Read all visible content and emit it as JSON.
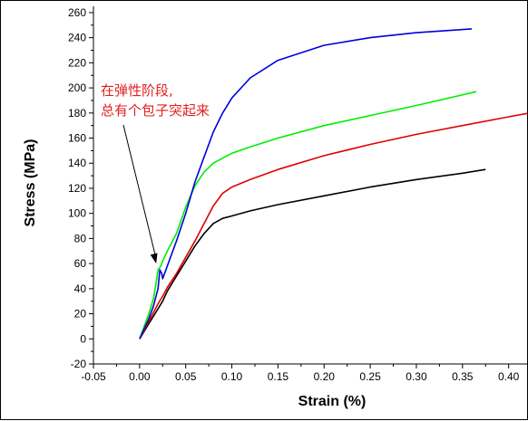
{
  "chart_data": {
    "type": "line",
    "xlabel": "Strain (%)",
    "ylabel": "Stress (MPa)",
    "xlim": [
      -0.05,
      0.42
    ],
    "ylim": [
      -20,
      265
    ],
    "x_ticks": [
      -0.05,
      0.0,
      0.05,
      0.1,
      0.15,
      0.2,
      0.25,
      0.3,
      0.35,
      0.4
    ],
    "x_tick_labels": [
      "-0.05",
      "0.00",
      "0.05",
      "0.10",
      "0.15",
      "0.20",
      "0.25",
      "0.30",
      "0.35",
      "0.40"
    ],
    "y_ticks": [
      -20,
      0,
      20,
      40,
      60,
      80,
      100,
      120,
      140,
      160,
      180,
      200,
      220,
      240,
      260
    ],
    "y_tick_labels": [
      "-20",
      "0",
      "20",
      "40",
      "60",
      "80",
      "100",
      "120",
      "140",
      "160",
      "180",
      "200",
      "220",
      "240",
      "260"
    ],
    "grid": false,
    "legend": "none",
    "annotation": {
      "lines": [
        "在弹性阶段,",
        "总有个包子突起来"
      ],
      "color": "#e02020",
      "arrow_target": [
        0.018,
        60
      ]
    },
    "series": [
      {
        "color": "#000000",
        "x": [
          0.0,
          0.005,
          0.01,
          0.015,
          0.02,
          0.025,
          0.03,
          0.04,
          0.05,
          0.06,
          0.07,
          0.08,
          0.09,
          0.1,
          0.12,
          0.15,
          0.2,
          0.25,
          0.3,
          0.35,
          0.375
        ],
        "y": [
          0,
          6,
          12,
          18,
          24,
          30,
          38,
          50,
          62,
          74,
          84,
          92,
          96,
          98,
          102,
          107,
          114,
          121,
          127,
          132,
          135
        ]
      },
      {
        "color": "#e00000",
        "x": [
          0.0,
          0.005,
          0.01,
          0.015,
          0.02,
          0.025,
          0.03,
          0.04,
          0.05,
          0.06,
          0.07,
          0.08,
          0.09,
          0.1,
          0.12,
          0.15,
          0.2,
          0.25,
          0.3,
          0.35,
          0.4,
          0.43
        ],
        "y": [
          0,
          7,
          14,
          21,
          28,
          34,
          41,
          52,
          65,
          78,
          92,
          106,
          116,
          121,
          127,
          135,
          146,
          155,
          163,
          170,
          177,
          181
        ]
      },
      {
        "color": "#00ee00",
        "x": [
          0.0,
          0.005,
          0.01,
          0.015,
          0.018,
          0.02,
          0.023,
          0.025,
          0.03,
          0.04,
          0.05,
          0.06,
          0.07,
          0.08,
          0.09,
          0.1,
          0.12,
          0.15,
          0.2,
          0.25,
          0.3,
          0.365
        ],
        "y": [
          0,
          10,
          20,
          32,
          45,
          55,
          58,
          62,
          70,
          84,
          105,
          122,
          133,
          140,
          144,
          148,
          153,
          160,
          170,
          178,
          186,
          197
        ]
      },
      {
        "color": "#0000dd",
        "x": [
          0.0,
          0.005,
          0.01,
          0.015,
          0.02,
          0.022,
          0.024,
          0.025,
          0.03,
          0.04,
          0.05,
          0.06,
          0.07,
          0.08,
          0.09,
          0.1,
          0.12,
          0.15,
          0.2,
          0.25,
          0.3,
          0.36
        ],
        "y": [
          0,
          8,
          16,
          26,
          40,
          55,
          52,
          48,
          58,
          78,
          100,
          125,
          145,
          165,
          180,
          192,
          208,
          222,
          234,
          240,
          244,
          247
        ]
      }
    ]
  }
}
